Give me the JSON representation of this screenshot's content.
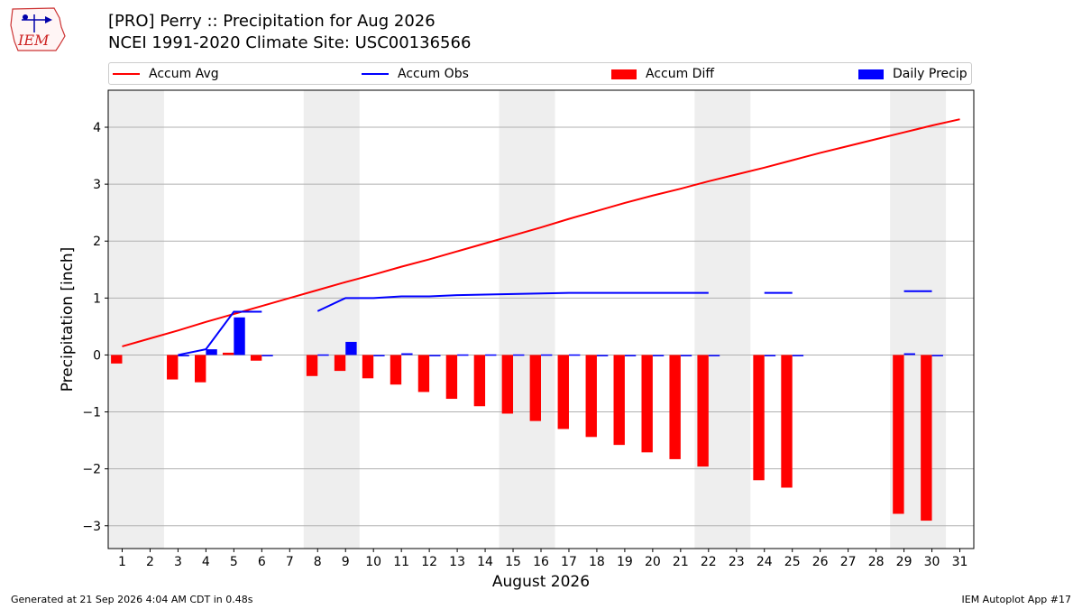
{
  "header": {
    "title_line1": "[PRO] Perry :: Precipitation for Aug 2026",
    "title_line2": "NCEI 1991-2020 Climate Site: USC00136566"
  },
  "logo": {
    "text": "IEM"
  },
  "legend": [
    {
      "label": "Accum Avg",
      "kind": "line",
      "color": "#ff0000"
    },
    {
      "label": "Accum Obs",
      "kind": "line",
      "color": "#0000ff"
    },
    {
      "label": "Accum Diff",
      "kind": "bar",
      "color": "#ff0000"
    },
    {
      "label": "Daily Precip",
      "kind": "bar",
      "color": "#0000ff"
    }
  ],
  "footer": {
    "generated": "Generated at 21 Sep 2026 4:04 AM CDT in 0.48s",
    "app": "IEM Autoplot App #17"
  },
  "chart_data": {
    "type": "bar",
    "xlabel": "August 2026",
    "ylabel": "Precipitation [inch]",
    "xlim": [
      0.5,
      31.5
    ],
    "ylim": [
      -3.4,
      4.65
    ],
    "yticks": [
      -3,
      -2,
      -1,
      0,
      1,
      2,
      3,
      4
    ],
    "ytick_labels": [
      "−3",
      "−2",
      "−1",
      "0",
      "1",
      "2",
      "3",
      "4"
    ],
    "x": [
      1,
      2,
      3,
      4,
      5,
      6,
      7,
      8,
      9,
      10,
      11,
      12,
      13,
      14,
      15,
      16,
      17,
      18,
      19,
      20,
      21,
      22,
      23,
      24,
      25,
      26,
      27,
      28,
      29,
      30,
      31
    ],
    "weekend_spans": [
      [
        0.5,
        2.5
      ],
      [
        7.5,
        9.5
      ],
      [
        14.5,
        16.5
      ],
      [
        21.5,
        23.5
      ],
      [
        28.5,
        30.5
      ]
    ],
    "grid": "horizontal",
    "colors": {
      "avg": "#ff0000",
      "obs": "#0000ff",
      "diff": "#ff0000",
      "daily": "#0000ff",
      "weekend": "#eeeeee",
      "grid": "#b0b0b0"
    },
    "series": [
      {
        "name": "Accum Avg",
        "type": "line",
        "values": [
          0.15,
          0.29,
          0.43,
          0.58,
          0.72,
          0.86,
          1.0,
          1.14,
          1.28,
          1.41,
          1.55,
          1.68,
          1.82,
          1.96,
          2.1,
          2.24,
          2.39,
          2.53,
          2.67,
          2.8,
          2.92,
          3.05,
          3.17,
          3.29,
          3.42,
          3.55,
          3.67,
          3.79,
          3.91,
          4.03,
          4.14
        ]
      },
      {
        "name": "Accum Obs",
        "type": "line",
        "values": [
          null,
          null,
          0.0,
          0.1,
          0.76,
          0.76,
          null,
          0.77,
          1.0,
          1.0,
          1.03,
          1.03,
          1.05,
          1.06,
          1.07,
          1.08,
          1.09,
          1.09,
          1.09,
          1.09,
          1.09,
          1.09,
          null,
          1.09,
          1.09,
          null,
          null,
          null,
          1.12,
          1.12,
          null
        ]
      },
      {
        "name": "Accum Diff",
        "type": "bar",
        "values": [
          -0.15,
          null,
          -0.43,
          -0.48,
          0.04,
          -0.1,
          null,
          -0.37,
          -0.28,
          -0.41,
          -0.52,
          -0.65,
          -0.77,
          -0.9,
          -1.03,
          -1.16,
          -1.3,
          -1.44,
          -1.58,
          -1.71,
          -1.83,
          -1.96,
          null,
          -2.2,
          -2.33,
          null,
          null,
          null,
          -2.79,
          -2.91,
          null
        ]
      },
      {
        "name": "Daily Precip",
        "type": "bar",
        "values": [
          null,
          null,
          0.0,
          0.1,
          0.66,
          0.0,
          null,
          0.01,
          0.23,
          0.0,
          0.03,
          0.0,
          0.01,
          0.01,
          0.01,
          0.01,
          0.01,
          0.0,
          0.0,
          0.0,
          0.0,
          0.0,
          null,
          0.0,
          0.0,
          null,
          null,
          null,
          0.03,
          0.0,
          null
        ]
      }
    ]
  }
}
